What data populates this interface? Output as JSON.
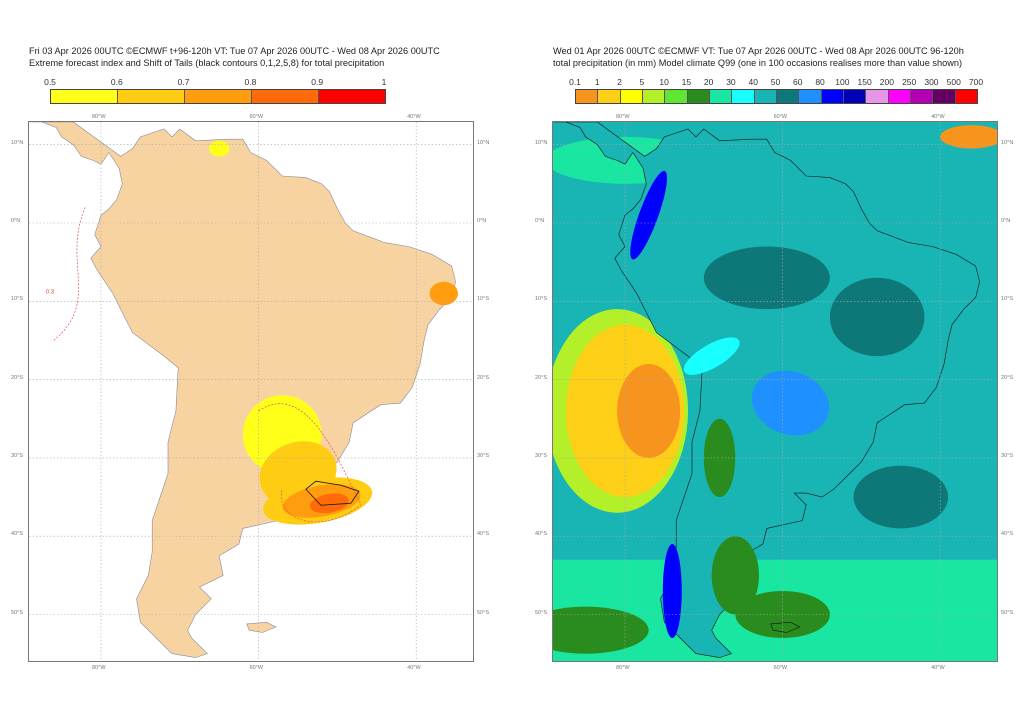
{
  "left_panel": {
    "title_line1": "Fri 03 Apr 2026 00UTC ©ECMWF t+96-120h  VT: Tue 07 Apr 2026 00UTC - Wed 08 Apr 2026 00UTC",
    "title_line2": "Extreme forecast index and Shift of Tails (black contours 0,1,2,5,8) for total precipitation",
    "colorbar_labels": [
      "0.5",
      "0.6",
      "0.7",
      "0.8",
      "0.9",
      "1"
    ],
    "colorbar_colors": [
      "#ffff1a",
      "#ffcc14",
      "#ff9d0e",
      "#ff6a0a",
      "#ff0000"
    ],
    "land_color": "#f8d3a2",
    "contour_label": "0.3"
  },
  "right_panel": {
    "title_line1": "Wed 01 Apr 2026 00UTC ©ECMWF VT: Tue 07 Apr 2026 00UTC - Wed 08 Apr 2026 00UTC    96-120h",
    "title_line2": "total precipitation (in mm)  Model climate Q99 (one in 100 occasions realises more than value shown)",
    "colorbar_labels": [
      "0.1",
      "1",
      "2",
      "5",
      "10",
      "15",
      "20",
      "30",
      "40",
      "50",
      "60",
      "80",
      "100",
      "150",
      "200",
      "250",
      "300",
      "500",
      "700"
    ],
    "colorbar_colors": [
      "#f7941d",
      "#fdd017",
      "#ffff00",
      "#b4f02a",
      "#5fe632",
      "#2a8c1e",
      "#19e6a0",
      "#19ffff",
      "#19b4b4",
      "#0e7878",
      "#1e90ff",
      "#0000ff",
      "#0000b4",
      "#e696e6",
      "#ff00ff",
      "#b400b4",
      "#640064",
      "#ff0000"
    ]
  },
  "axes": {
    "lon_labels": [
      "80°W",
      "60°W",
      "40°W"
    ],
    "lat_labels": [
      "10°N",
      "0°N",
      "10°S",
      "20°S",
      "30°S",
      "40°S",
      "50°S"
    ]
  }
}
